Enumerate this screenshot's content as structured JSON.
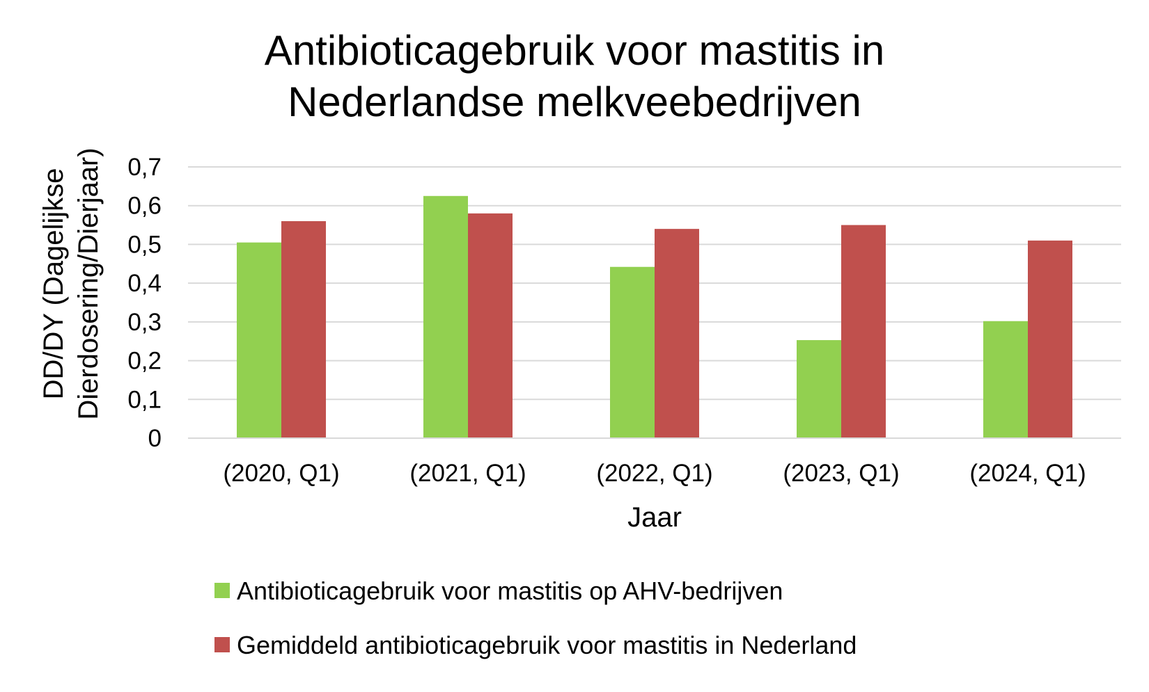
{
  "chart_data": {
    "type": "bar",
    "title_lines": [
      "Antibioticagebruik voor mastitis in",
      "Nederlandse melkveebedrijven"
    ],
    "xlabel": "Jaar",
    "ylabel_lines": [
      "DD/DY (Dagelijkse",
      "Dierdosering/Dierjaar)"
    ],
    "categories": [
      "(2020, Q1)",
      "(2021, Q1)",
      "(2022, Q1)",
      "(2023, Q1)",
      "(2024, Q1)"
    ],
    "series": [
      {
        "name": "Antibioticagebruik voor mastitis op AHV-bedrijven",
        "color": "#92d050",
        "values": [
          0.505,
          0.625,
          0.442,
          0.253,
          0.302
        ]
      },
      {
        "name": "Gemiddeld antibioticagebruik voor mastitis in Nederland",
        "color": "#c0504d",
        "values": [
          0.56,
          0.58,
          0.54,
          0.55,
          0.51
        ]
      }
    ],
    "ylim": [
      0,
      0.7
    ],
    "yticks": [
      "0",
      "0,1",
      "0,2",
      "0,3",
      "0,4",
      "0,5",
      "0,6",
      "0,7"
    ],
    "grid": true,
    "gridline_color": "#d9d9d9",
    "legend_position": "bottom"
  }
}
